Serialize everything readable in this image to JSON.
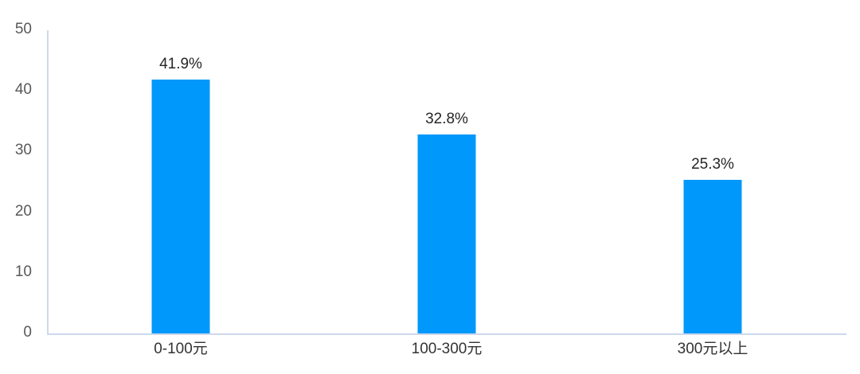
{
  "chart_data": {
    "type": "bar",
    "title": "",
    "xlabel": "",
    "ylabel": "",
    "categories": [
      "0-100元",
      "100-300元",
      "300元以上"
    ],
    "values": [
      41.9,
      32.8,
      25.3
    ],
    "value_labels": [
      "41.9%",
      "32.8%",
      "25.3%"
    ],
    "ylim": [
      0,
      50
    ],
    "yticks": [
      0,
      10,
      20,
      30,
      40,
      50
    ],
    "grid": false,
    "legend": false,
    "bar_color": "#0098fa",
    "axis_line_color": "#cdd8ec",
    "value_label_color": "#262626",
    "ytick_color": "#595959",
    "category_label_color": "#333333",
    "background_color": "#ffffff"
  }
}
